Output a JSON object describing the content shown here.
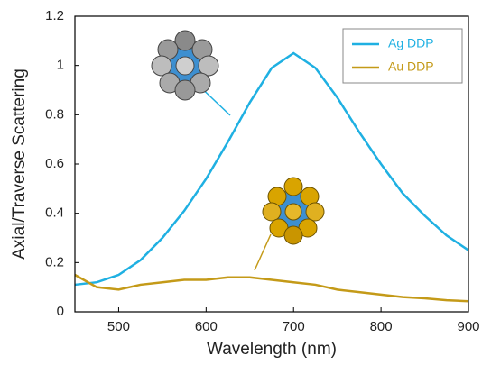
{
  "chart_data": {
    "type": "line",
    "xlabel": "Wavelength (nm)",
    "ylabel": "Axial/Traverse Scattering",
    "x": [
      450,
      475,
      500,
      525,
      550,
      575,
      600,
      625,
      650,
      675,
      700,
      725,
      750,
      775,
      800,
      825,
      850,
      875,
      900
    ],
    "series": [
      {
        "name": "Ag DDP",
        "color": "#1fb0e2",
        "values": [
          0.11,
          0.12,
          0.15,
          0.21,
          0.3,
          0.41,
          0.54,
          0.69,
          0.85,
          0.99,
          1.05,
          0.99,
          0.87,
          0.73,
          0.6,
          0.48,
          0.39,
          0.31,
          0.25
        ]
      },
      {
        "name": "Au DDP",
        "color": "#c49a18",
        "values": [
          0.15,
          0.1,
          0.09,
          0.11,
          0.12,
          0.13,
          0.13,
          0.14,
          0.14,
          0.13,
          0.12,
          0.11,
          0.09,
          0.08,
          0.07,
          0.06,
          0.055,
          0.047,
          0.043
        ]
      }
    ],
    "xlim": [
      450,
      900
    ],
    "xticks": [
      500,
      600,
      700,
      800,
      900
    ],
    "ylim": [
      0,
      1.2
    ],
    "yticks": [
      0,
      0.2,
      0.4,
      0.6,
      0.8,
      1,
      1.2
    ],
    "legend": "upper right"
  }
}
